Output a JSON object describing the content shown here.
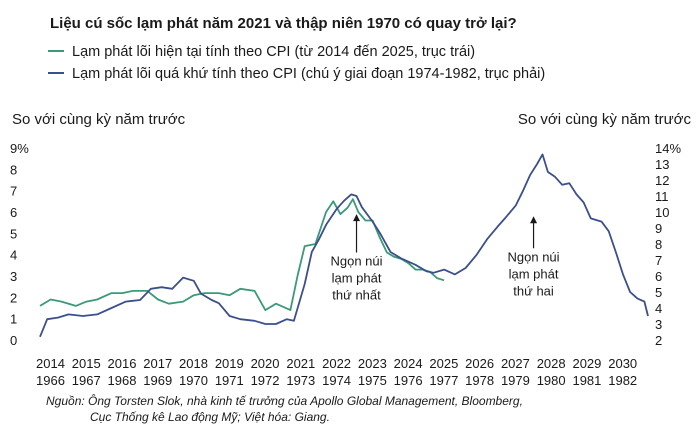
{
  "chart_data": {
    "type": "line",
    "title": "Liệu cú sốc lạm phát năm 2021 và thập niên 1970 có quay trở lại?",
    "legend": [
      {
        "label": "Lạm phát lõi hiện tại tính theo CPI (từ 2014 đến 2025, trục trái)",
        "color": "#3a9a78"
      },
      {
        "label": "Lạm phát lõi quá khứ tính theo CPI (chú ý giai đoạn 1974-1982, trục phải)",
        "color": "#3b4f8c"
      }
    ],
    "ylabel_left": "So với cùng kỳ năm trước",
    "ylabel_right": "So với cùng kỳ năm trước",
    "y_left_ticks": [
      "9%",
      "8",
      "7",
      "6",
      "5",
      "4",
      "3",
      "2",
      "1",
      "0"
    ],
    "y_left_range": [
      0,
      9
    ],
    "y_right_ticks": [
      "14%",
      "13",
      "12",
      "11",
      "10",
      "9",
      "8",
      "7",
      "6",
      "5",
      "4",
      "3",
      "2"
    ],
    "y_right_range": [
      2,
      14
    ],
    "x_ticks_top": [
      "2014",
      "2015",
      "2016",
      "2017",
      "2018",
      "2019",
      "2020",
      "2021",
      "2022",
      "2023",
      "2024",
      "2025",
      "2026",
      "2027",
      "2028",
      "2029",
      "2030"
    ],
    "x_ticks_bottom": [
      "1966",
      "1967",
      "1968",
      "1969",
      "1970",
      "1971",
      "1972",
      "1973",
      "1974",
      "1975",
      "1976",
      "1977",
      "1978",
      "1979",
      "1980",
      "1981",
      "1982"
    ],
    "x_range": [
      2014,
      2031
    ],
    "series": [
      {
        "axis": "left",
        "color": "#3a9a78",
        "points": [
          [
            2014.0,
            1.6
          ],
          [
            2014.3,
            1.9
          ],
          [
            2014.6,
            1.8
          ],
          [
            2015.0,
            1.6
          ],
          [
            2015.3,
            1.8
          ],
          [
            2015.6,
            1.9
          ],
          [
            2016.0,
            2.2
          ],
          [
            2016.3,
            2.2
          ],
          [
            2016.6,
            2.3
          ],
          [
            2017.0,
            2.3
          ],
          [
            2017.3,
            1.9
          ],
          [
            2017.6,
            1.7
          ],
          [
            2018.0,
            1.8
          ],
          [
            2018.3,
            2.1
          ],
          [
            2018.6,
            2.2
          ],
          [
            2019.0,
            2.2
          ],
          [
            2019.3,
            2.1
          ],
          [
            2019.6,
            2.4
          ],
          [
            2020.0,
            2.3
          ],
          [
            2020.3,
            1.4
          ],
          [
            2020.6,
            1.7
          ],
          [
            2021.0,
            1.4
          ],
          [
            2021.2,
            3.0
          ],
          [
            2021.4,
            4.4
          ],
          [
            2021.7,
            4.5
          ],
          [
            2022.0,
            6.0
          ],
          [
            2022.2,
            6.5
          ],
          [
            2022.4,
            5.9
          ],
          [
            2022.6,
            6.2
          ],
          [
            2022.75,
            6.6
          ],
          [
            2022.9,
            6.0
          ],
          [
            2023.1,
            5.6
          ],
          [
            2023.3,
            5.6
          ],
          [
            2023.5,
            4.8
          ],
          [
            2023.7,
            4.1
          ],
          [
            2023.9,
            3.9
          ],
          [
            2024.1,
            3.8
          ],
          [
            2024.3,
            3.6
          ],
          [
            2024.5,
            3.3
          ],
          [
            2024.7,
            3.3
          ],
          [
            2024.9,
            3.2
          ],
          [
            2025.1,
            2.9
          ],
          [
            2025.3,
            2.8
          ]
        ]
      },
      {
        "axis": "right",
        "color": "#3b4f8c",
        "points": [
          [
            2014.0,
            2.2
          ],
          [
            2014.2,
            3.3
          ],
          [
            2014.5,
            3.4
          ],
          [
            2014.8,
            3.6
          ],
          [
            2015.2,
            3.5
          ],
          [
            2015.6,
            3.6
          ],
          [
            2016.0,
            4.0
          ],
          [
            2016.4,
            4.4
          ],
          [
            2016.8,
            4.5
          ],
          [
            2017.1,
            5.2
          ],
          [
            2017.4,
            5.3
          ],
          [
            2017.7,
            5.2
          ],
          [
            2018.0,
            5.9
          ],
          [
            2018.3,
            5.7
          ],
          [
            2018.5,
            4.9
          ],
          [
            2018.8,
            4.5
          ],
          [
            2019.0,
            4.3
          ],
          [
            2019.3,
            3.5
          ],
          [
            2019.6,
            3.3
          ],
          [
            2020.0,
            3.2
          ],
          [
            2020.3,
            3.0
          ],
          [
            2020.6,
            3.0
          ],
          [
            2020.9,
            3.3
          ],
          [
            2021.1,
            3.2
          ],
          [
            2021.4,
            5.5
          ],
          [
            2021.6,
            7.5
          ],
          [
            2021.8,
            8.3
          ],
          [
            2022.0,
            9.2
          ],
          [
            2022.3,
            10.2
          ],
          [
            2022.5,
            10.7
          ],
          [
            2022.7,
            11.1
          ],
          [
            2022.85,
            11.0
          ],
          [
            2023.0,
            10.3
          ],
          [
            2023.3,
            9.4
          ],
          [
            2023.5,
            8.7
          ],
          [
            2023.8,
            7.5
          ],
          [
            2024.1,
            7.1
          ],
          [
            2024.5,
            6.7
          ],
          [
            2024.8,
            6.3
          ],
          [
            2025.0,
            6.2
          ],
          [
            2025.3,
            6.4
          ],
          [
            2025.6,
            6.1
          ],
          [
            2025.9,
            6.5
          ],
          [
            2026.2,
            7.3
          ],
          [
            2026.5,
            8.3
          ],
          [
            2026.8,
            9.1
          ],
          [
            2027.0,
            9.6
          ],
          [
            2027.3,
            10.4
          ],
          [
            2027.5,
            11.3
          ],
          [
            2027.7,
            12.3
          ],
          [
            2027.9,
            13.0
          ],
          [
            2028.05,
            13.6
          ],
          [
            2028.2,
            12.5
          ],
          [
            2028.4,
            12.2
          ],
          [
            2028.6,
            11.7
          ],
          [
            2028.8,
            11.8
          ],
          [
            2029.0,
            11.1
          ],
          [
            2029.2,
            10.6
          ],
          [
            2029.4,
            9.6
          ],
          [
            2029.7,
            9.4
          ],
          [
            2029.9,
            8.8
          ],
          [
            2030.1,
            7.5
          ],
          [
            2030.3,
            6.1
          ],
          [
            2030.5,
            5.0
          ],
          [
            2030.7,
            4.6
          ],
          [
            2030.9,
            4.4
          ],
          [
            2031.0,
            3.5
          ]
        ]
      }
    ],
    "annotations": [
      {
        "lines": [
          "Ngọn núi",
          "lạm phát",
          "thứ nhất"
        ],
        "x": 2022.85,
        "arrow_from_y": 4.1,
        "arrow_to_y": 5.9
      },
      {
        "lines": [
          "Ngọn núi",
          "lạm phát",
          "thứ hai"
        ],
        "x": 2027.8,
        "arrow_from_y": 4.3,
        "arrow_to_y": 5.8
      }
    ]
  },
  "source": {
    "line1": "Nguồn: Ông Torsten Slok, nhà kinh tế trưởng của Apollo Global Management, Bloomberg,",
    "line2": "Cục Thống kê Lao động Mỹ; Việt hóa: Giang."
  }
}
